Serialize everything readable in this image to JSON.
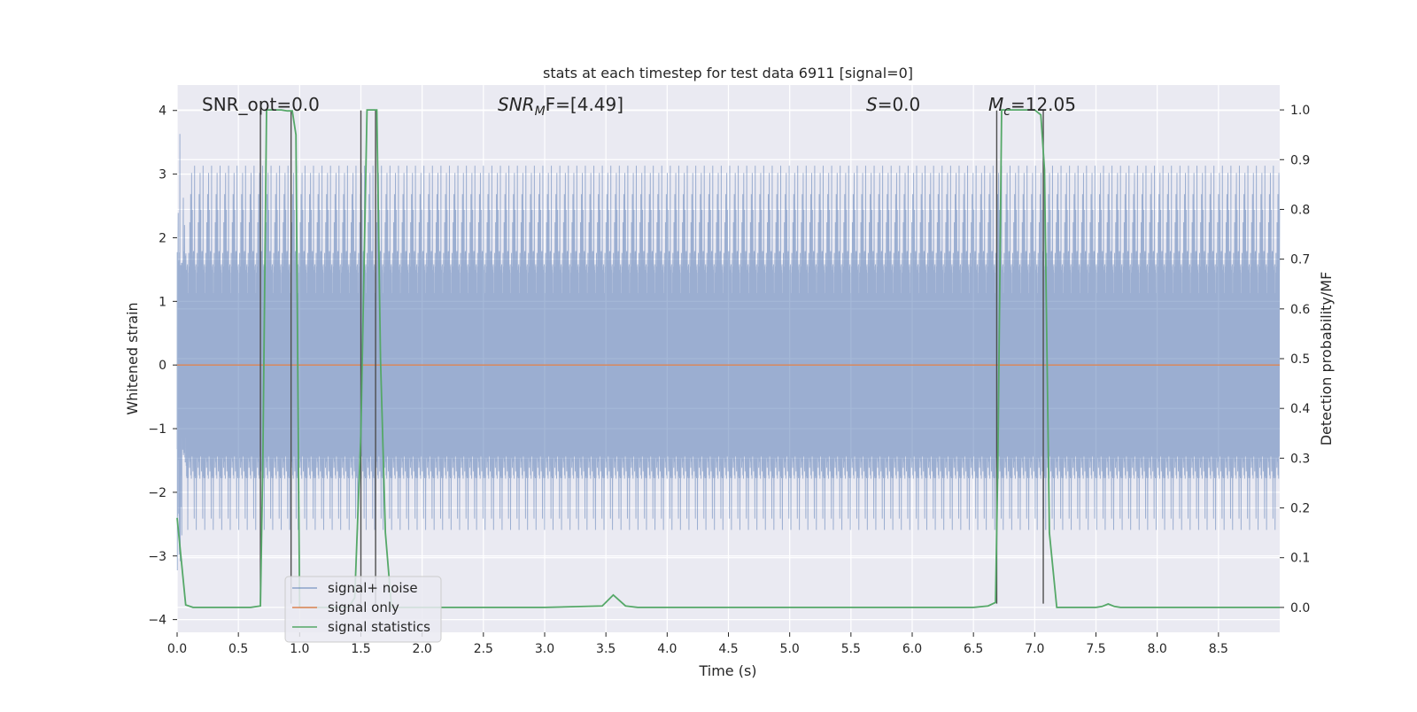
{
  "chart_data": {
    "type": "line",
    "title": "stats at each timestep for test data 6911 [signal=0]",
    "xlabel": "Time (s)",
    "ylabel": "Whitened strain",
    "ylabel_right": "Detection probability/MF",
    "xlim": [
      0,
      9.0
    ],
    "ylim": [
      -4.2,
      4.4
    ],
    "ylim_right": [
      -0.05,
      1.05
    ],
    "x_ticks": [
      "0.0",
      "0.5",
      "1.0",
      "1.5",
      "2.0",
      "2.5",
      "3.0",
      "3.5",
      "4.0",
      "4.5",
      "5.0",
      "5.5",
      "6.0",
      "6.5",
      "7.0",
      "7.5",
      "8.0",
      "8.5"
    ],
    "x_tick_values": [
      0,
      0.5,
      1,
      1.5,
      2,
      2.5,
      3,
      3.5,
      4,
      4.5,
      5,
      5.5,
      6,
      6.5,
      7,
      7.5,
      8,
      8.5
    ],
    "y_ticks": [
      "4",
      "3",
      "2",
      "1",
      "0",
      "−1",
      "−2",
      "−3",
      "−4"
    ],
    "y_tick_values": [
      4,
      3,
      2,
      1,
      0,
      -1,
      -2,
      -3,
      -4
    ],
    "y_right_ticks": [
      "1.0",
      "0.9",
      "0.8",
      "0.7",
      "0.6",
      "0.5",
      "0.4",
      "0.3",
      "0.2",
      "0.1",
      "0.0"
    ],
    "y_right_tick_values": [
      1.0,
      0.9,
      0.8,
      0.7,
      0.6,
      0.5,
      0.4,
      0.3,
      0.2,
      0.1,
      0.0
    ],
    "grid": true,
    "legend_position": "bottom-left",
    "annotations": {
      "snr_opt": "SNR_opt=0.0",
      "snr_mf_main": "SNR",
      "snr_mf_sub": "M",
      "snr_mf_rest": "F=[4.49]",
      "s_label": "S",
      "s_rest": "=0.0",
      "mc_main": "M",
      "mc_sub": "c",
      "mc_rest": "=12.05"
    },
    "noise": {
      "name": "signal+ noise",
      "color": "#4c72b0",
      "sample_rate": 1024,
      "duration": 9.0,
      "core_amplitude_mean": 1.45,
      "core_amplitude_spread": 0.35,
      "peak_amplitude_max": 3.65
    },
    "signal_only": {
      "name": "signal only",
      "color": "#dd8452",
      "x": [
        0,
        9.0
      ],
      "y": [
        0,
        0
      ]
    },
    "signal_statistics": {
      "name": "signal statistics",
      "color": "#55a868",
      "x": [
        0,
        0.07,
        0.13,
        0.2,
        0.3,
        0.4,
        0.5,
        0.6,
        0.68,
        0.7,
        0.73,
        0.76,
        0.8,
        0.85,
        0.9,
        0.94,
        0.97,
        1.0,
        1.1,
        1.2,
        1.3,
        1.4,
        1.45,
        1.5,
        1.55,
        1.58,
        1.63,
        1.66,
        1.7,
        1.75,
        1.8,
        2.0,
        2.5,
        3.0,
        3.47,
        3.56,
        3.66,
        3.76,
        4.0,
        4.5,
        5.0,
        5.5,
        6.0,
        6.5,
        6.62,
        6.68,
        6.7,
        6.73,
        6.76,
        6.8,
        6.9,
        7.0,
        7.05,
        7.08,
        7.12,
        7.18,
        7.3,
        7.4,
        7.5,
        7.55,
        7.6,
        7.65,
        7.7,
        8.0,
        8.5,
        9.0
      ],
      "y": [
        0.18,
        0.005,
        0.0,
        0.0,
        0.0,
        0.0,
        0.0,
        0.0,
        0.003,
        0.3,
        1.0,
        1.0,
        1.0,
        1.0,
        0.998,
        0.998,
        0.95,
        0.0,
        0.0,
        0.0,
        0.0,
        0.0,
        0.02,
        0.35,
        1.0,
        1.0,
        1.0,
        0.5,
        0.15,
        0.0,
        0.0,
        0.0,
        0.0,
        0.0,
        0.003,
        0.025,
        0.003,
        0.0,
        0.0,
        0.0,
        0.0,
        0.0,
        0.0,
        0.0,
        0.003,
        0.01,
        0.3,
        1.0,
        1.0,
        1.0,
        1.0,
        1.0,
        0.99,
        0.88,
        0.15,
        0.0,
        0.0,
        0.0,
        0.0,
        0.002,
        0.007,
        0.002,
        0.0,
        0.0,
        0.0,
        0.0
      ]
    },
    "marker_lines": {
      "color": "#4d4d4d",
      "x": [
        0.68,
        0.93,
        1.5,
        1.62,
        6.69,
        7.07
      ],
      "y_top": 4.0,
      "y_bottom": -3.75
    },
    "legend": [
      "signal+ noise",
      "signal only",
      "signal statistics"
    ]
  }
}
